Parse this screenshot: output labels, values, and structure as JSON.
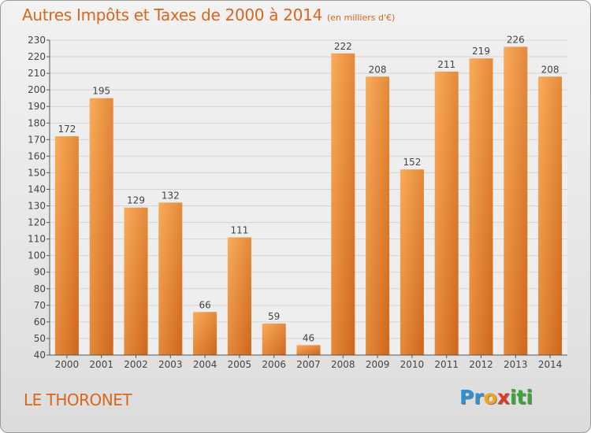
{
  "title": "Autres Impôts et Taxes de 2000 à 2014",
  "subtitle": "(en milliers d'€)",
  "commune": "LE THORONET",
  "logo": {
    "p1": "Pr",
    "p2": "o",
    "p3": "x",
    "p4": "iti"
  },
  "colors": {
    "bar_light": "#f7a552",
    "bar_dark": "#d2691e",
    "text": "#d8661e",
    "axis": "#444444",
    "grid": "#cfcfcf"
  },
  "chart_data": {
    "type": "bar",
    "categories": [
      "2000",
      "2001",
      "2002",
      "2003",
      "2004",
      "2005",
      "2006",
      "2007",
      "2008",
      "2009",
      "2010",
      "2011",
      "2012",
      "2013",
      "2014"
    ],
    "values": [
      172,
      195,
      129,
      132,
      66,
      111,
      59,
      46,
      222,
      208,
      152,
      211,
      219,
      226,
      208
    ],
    "ylim": [
      40,
      230
    ],
    "ytick_step": 10,
    "grid": true
  }
}
